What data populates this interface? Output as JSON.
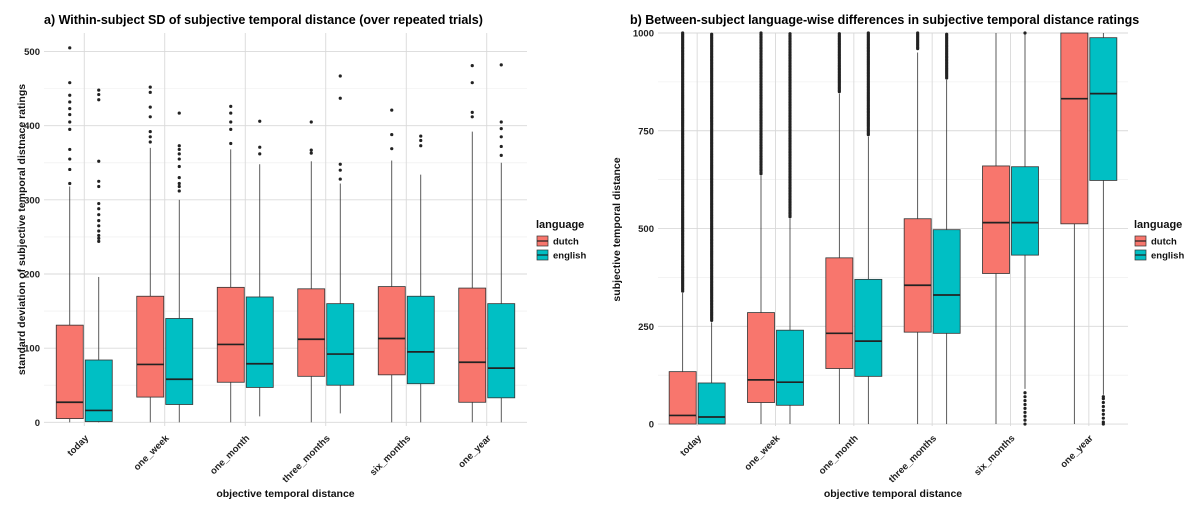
{
  "chart_data": [
    {
      "type": "boxplot",
      "title": "a) Within-subject SD of subjective temporal distance (over repeated trials)",
      "xlabel": "objective temporal distance",
      "ylabel": "standard deviation of subjective temporal distnace ratings",
      "ylim": [
        -5,
        525
      ],
      "yticks": [
        0,
        100,
        200,
        300,
        400,
        500
      ],
      "categories": [
        "today",
        "one_week",
        "one_month",
        "three_months",
        "six_months",
        "one_year"
      ],
      "legend": {
        "title": "language",
        "position": "right",
        "entries": [
          "dutch",
          "english"
        ]
      },
      "grid": true,
      "series": [
        {
          "name": "dutch",
          "color": "#F8766D",
          "boxes": [
            {
              "min": 0,
              "q1": 5,
              "median": 27,
              "q3": 131,
              "max": 318,
              "outliers": [
                322,
                341,
                355,
                368,
                395,
                405,
                415,
                423,
                432,
                441,
                458,
                505
              ]
            },
            {
              "min": 0,
              "q1": 34,
              "median": 78,
              "q3": 170,
              "max": 370,
              "outliers": [
                378,
                385,
                392,
                412,
                425,
                445,
                452
              ]
            },
            {
              "min": 0,
              "q1": 54,
              "median": 105,
              "q3": 182,
              "max": 368,
              "outliers": [
                376,
                395,
                405,
                417,
                426
              ]
            },
            {
              "min": 0,
              "q1": 62,
              "median": 112,
              "q3": 180,
              "max": 352,
              "outliers": [
                363,
                367,
                405
              ]
            },
            {
              "min": 0,
              "q1": 64,
              "median": 113,
              "q3": 183,
              "max": 353,
              "outliers": [
                369,
                388,
                421
              ]
            },
            {
              "min": 0,
              "q1": 27,
              "median": 81,
              "q3": 181,
              "max": 392,
              "outliers": [
                412,
                418,
                458,
                481
              ]
            }
          ]
        },
        {
          "name": "english",
          "color": "#00BFC4",
          "boxes": [
            {
              "min": 0,
              "q1": 1,
              "median": 16,
              "q3": 84,
              "max": 196,
              "outliers": [
                244,
                248,
                252,
                258,
                265,
                272,
                280,
                288,
                295,
                318,
                325,
                352,
                435,
                442,
                448
              ]
            },
            {
              "min": 0,
              "q1": 24,
              "median": 58,
              "q3": 140,
              "max": 300,
              "outliers": [
                312,
                318,
                322,
                330,
                345,
                355,
                362,
                368,
                373,
                417
              ]
            },
            {
              "min": 8,
              "q1": 47,
              "median": 79,
              "q3": 169,
              "max": 348,
              "outliers": [
                362,
                371,
                406
              ]
            },
            {
              "min": 12,
              "q1": 50,
              "median": 92,
              "q3": 160,
              "max": 322,
              "outliers": [
                328,
                340,
                348,
                437,
                467
              ]
            },
            {
              "min": 0,
              "q1": 52,
              "median": 95,
              "q3": 170,
              "max": 334,
              "outliers": [
                373,
                380,
                386
              ]
            },
            {
              "min": 0,
              "q1": 33,
              "median": 73,
              "q3": 160,
              "max": 350,
              "outliers": [
                360,
                372,
                385,
                396,
                405,
                482
              ]
            }
          ]
        }
      ]
    },
    {
      "type": "boxplot",
      "title": "b) Between-subject language-wise differences in subjective temporal distance ratings",
      "xlabel": "objective temporal distance",
      "ylabel": "subjective temporal distance",
      "ylim": [
        -5,
        1000
      ],
      "yticks": [
        0,
        250,
        500,
        750,
        1000
      ],
      "categories": [
        "today",
        "one_week",
        "one_month",
        "three_months",
        "six_months",
        "one_year"
      ],
      "legend": {
        "title": "language",
        "position": "right",
        "entries": [
          "dutch",
          "english"
        ]
      },
      "grid": true,
      "series": [
        {
          "name": "dutch",
          "color": "#F8766D",
          "boxes": [
            {
              "min": 0,
              "q1": 0,
              "median": 22,
              "q3": 134,
              "max": 335,
              "outlier_range": [
                340,
                1000
              ]
            },
            {
              "min": 0,
              "q1": 55,
              "median": 113,
              "q3": 285,
              "max": 635,
              "outlier_range": [
                640,
                1000
              ]
            },
            {
              "min": 0,
              "q1": 142,
              "median": 232,
              "q3": 425,
              "max": 845,
              "outlier_range": [
                850,
                1000
              ]
            },
            {
              "min": 0,
              "q1": 235,
              "median": 355,
              "q3": 525,
              "max": 950,
              "outlier_range": [
                960,
                1000
              ]
            },
            {
              "min": 0,
              "q1": 385,
              "median": 515,
              "q3": 660,
              "max": 1000,
              "outliers": []
            },
            {
              "min": 0,
              "q1": 512,
              "median": 832,
              "q3": 1000,
              "max": 1000,
              "outliers": []
            }
          ]
        },
        {
          "name": "english",
          "color": "#00BFC4",
          "boxes": [
            {
              "min": 0,
              "q1": 0,
              "median": 18,
              "q3": 105,
              "max": 260,
              "outlier_range": [
                265,
                1000
              ]
            },
            {
              "min": 0,
              "q1": 48,
              "median": 107,
              "q3": 240,
              "max": 525,
              "outlier_range": [
                530,
                1000
              ]
            },
            {
              "min": 0,
              "q1": 122,
              "median": 212,
              "q3": 370,
              "max": 735,
              "outlier_range": [
                740,
                1000
              ]
            },
            {
              "min": 0,
              "q1": 232,
              "median": 330,
              "q3": 497,
              "max": 880,
              "outlier_range": [
                885,
                1000
              ]
            },
            {
              "min": 90,
              "q1": 432,
              "median": 515,
              "q3": 658,
              "max": 1000,
              "outliers": [
                0,
                10,
                20,
                30,
                40,
                50,
                60,
                70,
                80,
                1000
              ]
            },
            {
              "min": 75,
              "q1": 623,
              "median": 845,
              "q3": 988,
              "max": 1000,
              "outliers": [
                0,
                5,
                15,
                25,
                35,
                45,
                55,
                65,
                70
              ]
            }
          ]
        }
      ]
    }
  ]
}
